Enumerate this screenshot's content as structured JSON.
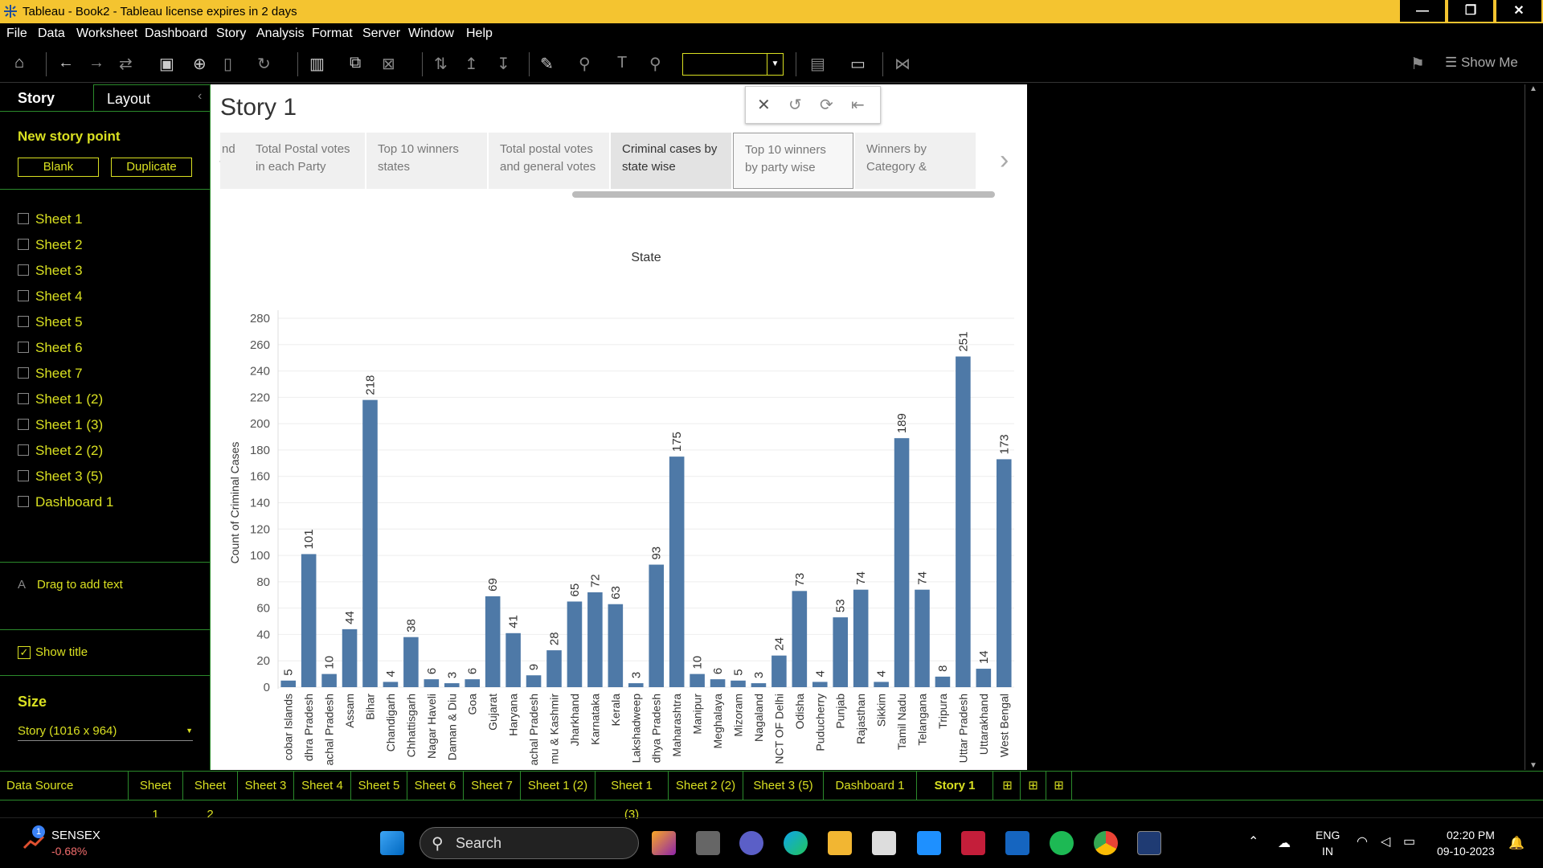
{
  "window": {
    "title": "Tableau - Book2 - Tableau license expires in 2 days",
    "minimize": "—",
    "restore": "❐",
    "close": "✕"
  },
  "menu": [
    "File",
    "Data",
    "Worksheet",
    "Dashboard",
    "Story",
    "Analysis",
    "Format",
    "Server",
    "Window",
    "Help"
  ],
  "toolbar": {
    "show_me": "Show Me"
  },
  "left_pane": {
    "tab_story": "Story",
    "tab_layout": "Layout",
    "collapse": "‹",
    "new_story_point": "New story point",
    "blank": "Blank",
    "duplicate": "Duplicate",
    "sheets": [
      "Sheet 1",
      "Sheet 2",
      "Sheet 3",
      "Sheet 4",
      "Sheet 5",
      "Sheet 6",
      "Sheet 7",
      "Sheet 1 (2)",
      "Sheet 1 (3)",
      "Sheet 2 (2)",
      "Sheet 3 (5)",
      "Dashboard 1"
    ],
    "drag_text": "Drag to add text",
    "show_title": "Show title",
    "size_label": "Size",
    "size_value": "Story (1016 x 964)"
  },
  "story": {
    "title": "Story 1",
    "points": [
      "nd",
      "Total Postal votes in each Party",
      "Top 10 winners states",
      "Total postal votes and general votes",
      "Criminal cases by state wise",
      "Top 10 winners by party wise",
      "Winners by Category &"
    ]
  },
  "chart_data": {
    "type": "bar",
    "title": "State",
    "ylabel": "Count of Criminal Cases",
    "ylim": [
      0,
      280
    ],
    "yticks": [
      0,
      20,
      40,
      60,
      80,
      100,
      120,
      140,
      160,
      180,
      200,
      220,
      240,
      260,
      280
    ],
    "color": "#4e79a7",
    "categories": [
      "cobar Islands",
      "dhra Pradesh",
      "achal Pradesh",
      "Assam",
      "Bihar",
      "Chandigarh",
      "Chhattisgarh",
      "Nagar Haveli",
      "Daman & Diu",
      "Goa",
      "Gujarat",
      "Haryana",
      "achal Pradesh",
      "mu & Kashmir",
      "Jharkhand",
      "Karnataka",
      "Kerala",
      "Lakshadweep",
      "dhya Pradesh",
      "Maharashtra",
      "Manipur",
      "Meghalaya",
      "Mizoram",
      "Nagaland",
      "NCT OF Delhi",
      "Odisha",
      "Puducherry",
      "Punjab",
      "Rajasthan",
      "Sikkim",
      "Tamil Nadu",
      "Telangana",
      "Tripura",
      "Uttar Pradesh",
      "Uttarakhand",
      "West Bengal"
    ],
    "values": [
      5,
      101,
      10,
      44,
      218,
      4,
      38,
      6,
      3,
      6,
      69,
      41,
      9,
      28,
      65,
      72,
      63,
      3,
      93,
      175,
      10,
      6,
      5,
      3,
      24,
      73,
      4,
      53,
      74,
      4,
      189,
      74,
      8,
      251,
      14,
      173
    ]
  },
  "bottom_tabs": [
    "Data Source",
    "Sheet 1",
    "Sheet 2",
    "Sheet 3",
    "Sheet 4",
    "Sheet 5",
    "Sheet 6",
    "Sheet 7",
    "Sheet 1 (2)",
    "Sheet 1 (3)",
    "Sheet 2 (2)",
    "Sheet 3 (5)",
    "Dashboard 1",
    "Story 1"
  ],
  "taskbar": {
    "sensex_label": "SENSEX",
    "sensex_change": "-0.68%",
    "search": "Search",
    "lang": "ENG",
    "region": "IN",
    "time": "02:20 PM",
    "date": "09-10-2023",
    "badge": "1"
  }
}
